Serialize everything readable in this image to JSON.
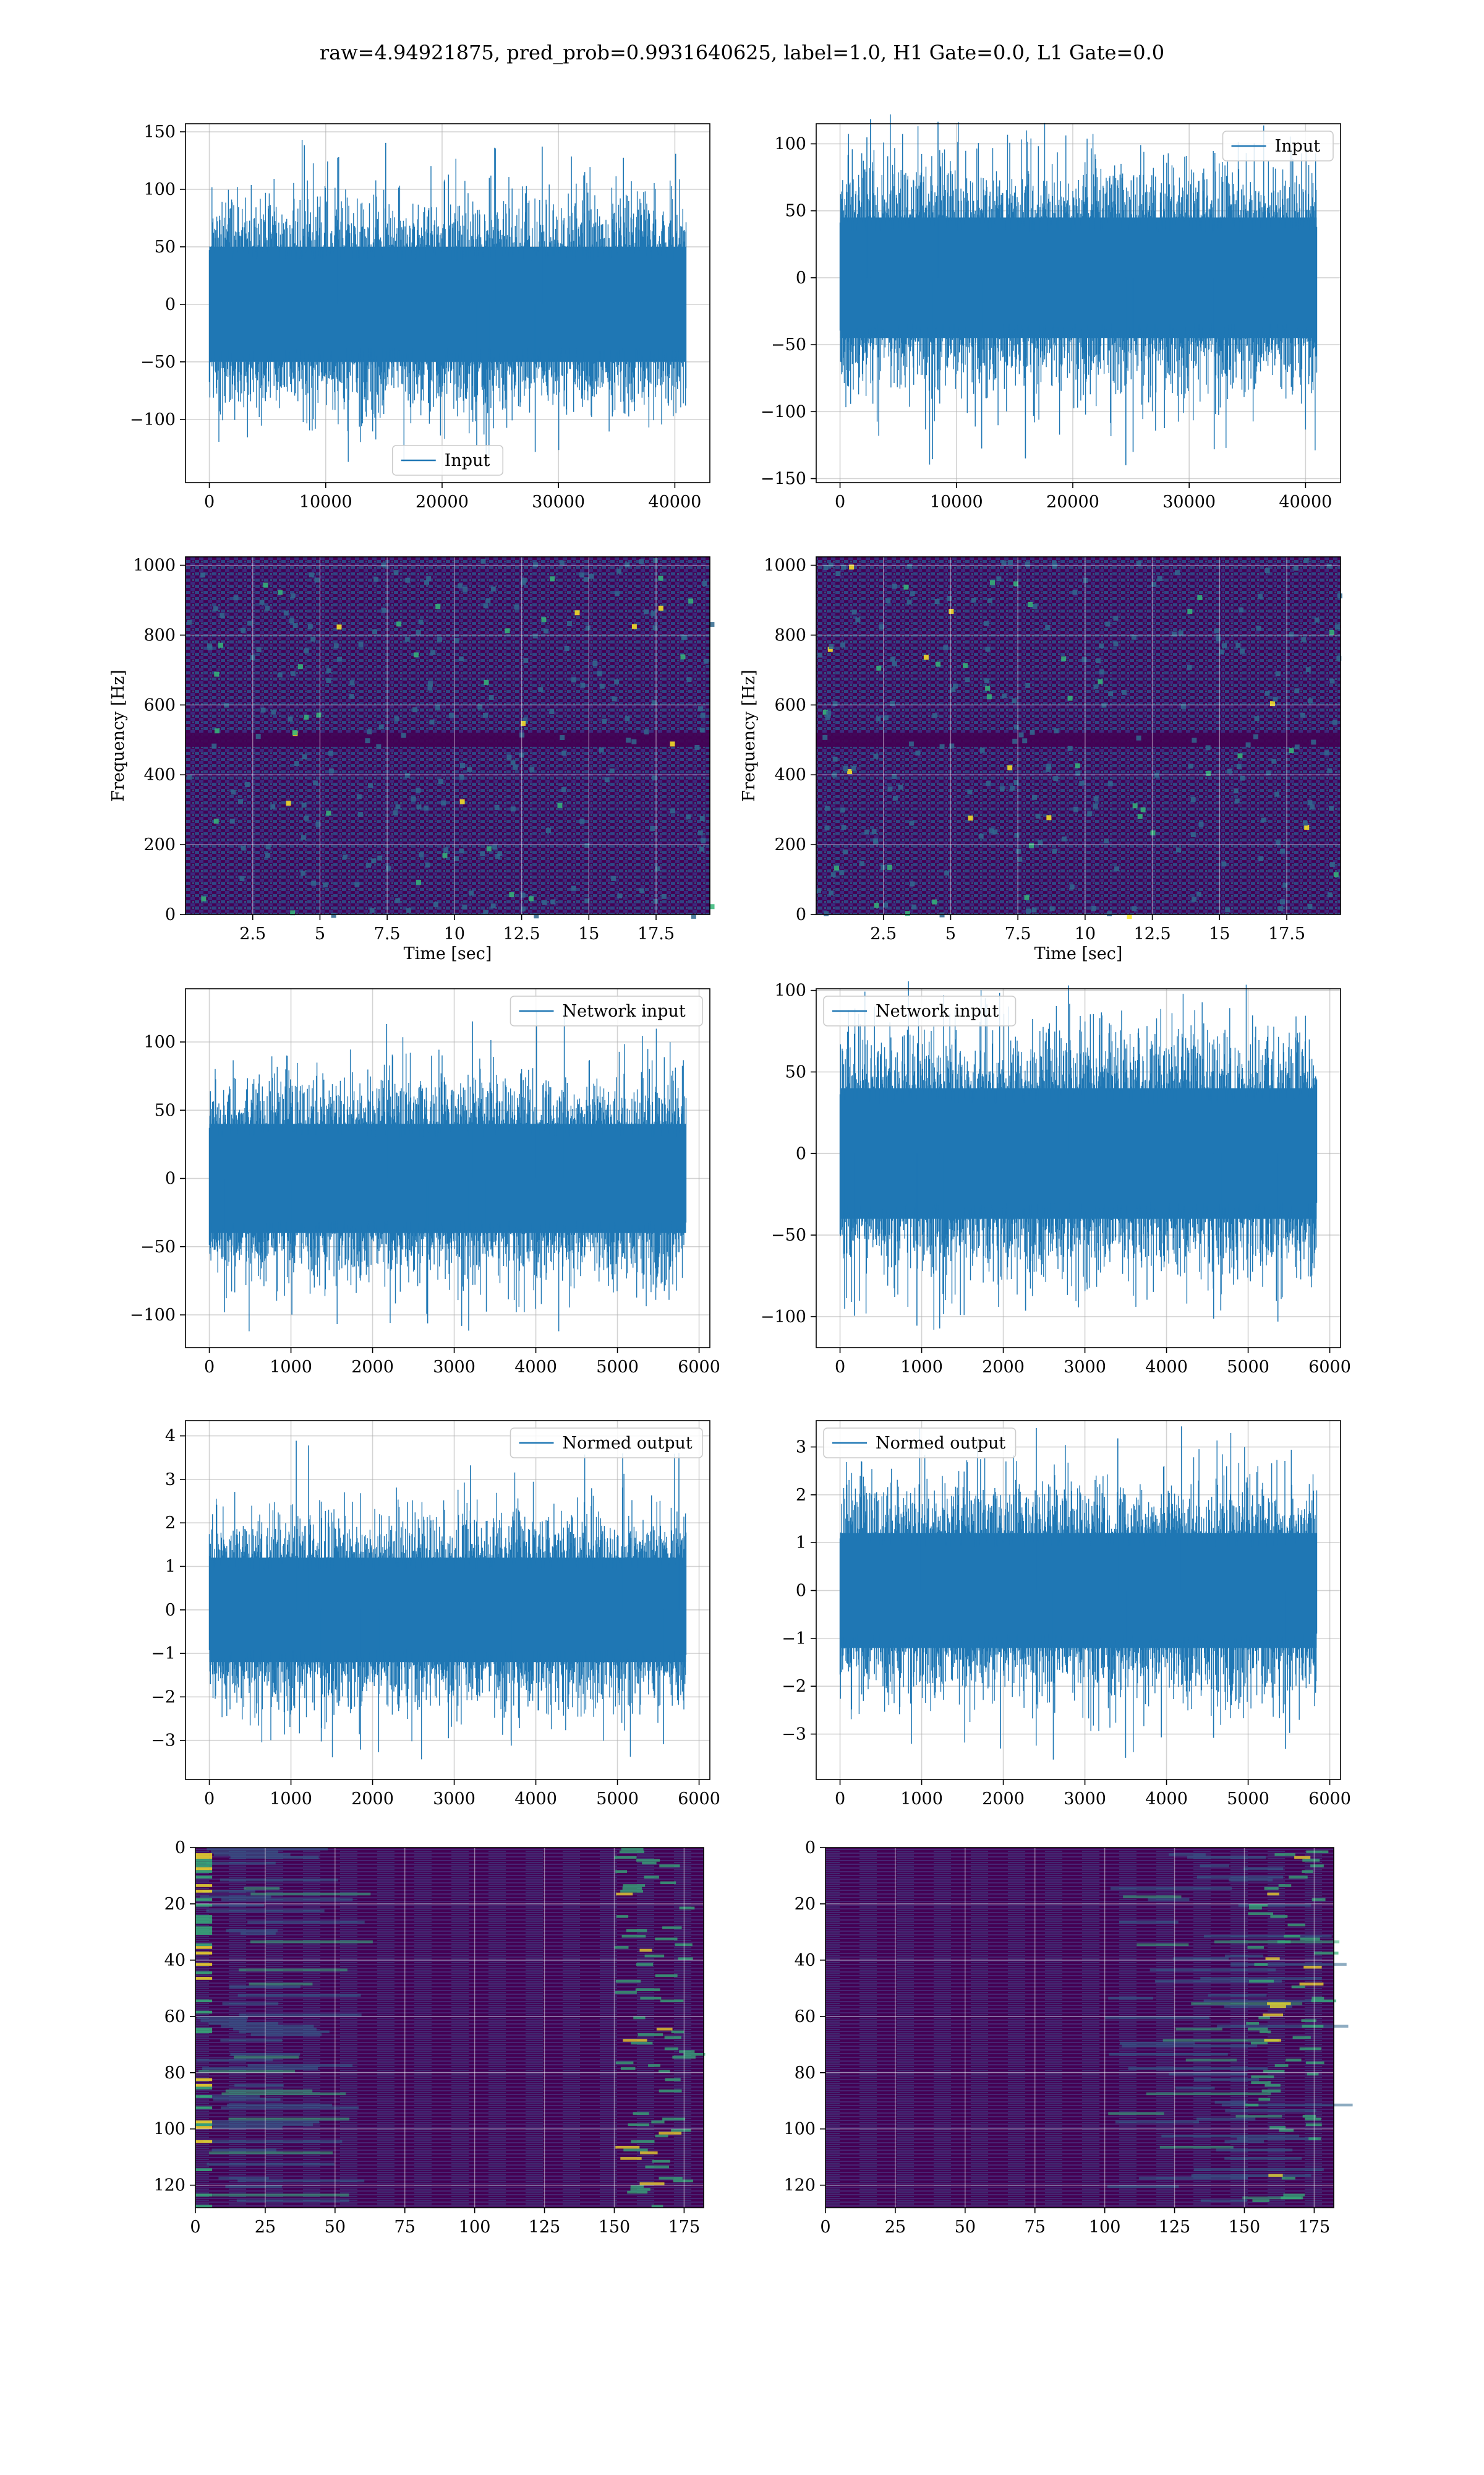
{
  "figure": {
    "suptitle": "raw=4.94921875, pred_prob=0.9931640625, label=1.0, H1 Gate=0.0, L1 Gate=0.0"
  },
  "colors": {
    "line": "#1f77b4",
    "grid": "#b0b0b0",
    "viridis_dark": "#440154",
    "viridis_mid": "#31688e",
    "viridis_teal": "#35b779",
    "viridis_yellow": "#fde725"
  },
  "chart_data": [
    {
      "id": "input-h1",
      "type": "line",
      "series": [
        {
          "name": "Input",
          "x_range": [
            0,
            40960
          ],
          "y_envelope": [
            -137,
            143
          ],
          "y_body": [
            -50,
            50
          ]
        }
      ],
      "xticks": [
        0,
        10000,
        20000,
        30000,
        40000
      ],
      "yticks": [
        -100,
        -50,
        0,
        50,
        100,
        150
      ],
      "xlim": [
        -2048,
        43008
      ],
      "ylim": [
        -155,
        157
      ],
      "legend": "lower center",
      "grid": true
    },
    {
      "id": "input-l1",
      "type": "line",
      "series": [
        {
          "name": "Input",
          "x_range": [
            0,
            40960
          ],
          "y_envelope": [
            -140,
            122
          ],
          "y_body": [
            -45,
            45
          ]
        }
      ],
      "xticks": [
        0,
        10000,
        20000,
        30000,
        40000
      ],
      "yticks": [
        -150,
        -100,
        -50,
        0,
        50,
        100
      ],
      "xlim": [
        -2048,
        43008
      ],
      "ylim": [
        -153,
        115
      ],
      "legend": "upper right",
      "grid": true
    },
    {
      "id": "spectrogram-h1",
      "type": "heatmap",
      "xlabel": "Time [sec]",
      "ylabel": "Frequency [Hz]",
      "xticks": [
        2.5,
        5.0,
        7.5,
        10.0,
        12.5,
        15.0,
        17.5
      ],
      "yticks": [
        0,
        200,
        400,
        600,
        800,
        1000
      ],
      "xlim": [
        0.0,
        19.5
      ],
      "ylim": [
        0,
        1024
      ],
      "colormap": "viridis",
      "grid": true
    },
    {
      "id": "spectrogram-l1",
      "type": "heatmap",
      "xlabel": "Time [sec]",
      "ylabel": "Frequency [Hz]",
      "xticks": [
        2.5,
        5.0,
        7.5,
        10.0,
        12.5,
        15.0,
        17.5
      ],
      "yticks": [
        0,
        200,
        400,
        600,
        800,
        1000
      ],
      "xlim": [
        0.0,
        19.5
      ],
      "ylim": [
        0,
        1024
      ],
      "colormap": "viridis",
      "grid": true
    },
    {
      "id": "network-input-h1",
      "type": "line",
      "series": [
        {
          "name": "Network input",
          "x_range": [
            0,
            5840
          ],
          "y_envelope": [
            -112,
            128
          ],
          "y_body": [
            -40,
            40
          ]
        }
      ],
      "xticks": [
        0,
        1000,
        2000,
        3000,
        4000,
        5000,
        6000
      ],
      "yticks": [
        -100,
        -50,
        0,
        50,
        100
      ],
      "xlim": [
        -292,
        6132
      ],
      "ylim": [
        -124,
        139
      ],
      "legend": "upper right",
      "grid": true
    },
    {
      "id": "network-input-l1",
      "type": "line",
      "series": [
        {
          "name": "Network input",
          "x_range": [
            0,
            5840
          ],
          "y_envelope": [
            -108,
            112
          ],
          "y_body": [
            -40,
            40
          ]
        }
      ],
      "xticks": [
        0,
        1000,
        2000,
        3000,
        4000,
        5000,
        6000
      ],
      "yticks": [
        -100,
        -50,
        0,
        50,
        100
      ],
      "xlim": [
        -292,
        6132
      ],
      "ylim": [
        -119,
        101
      ],
      "legend": "upper left",
      "grid": true
    },
    {
      "id": "normed-output-h1",
      "type": "line",
      "series": [
        {
          "name": "Normed output",
          "x_range": [
            0,
            5840
          ],
          "y_envelope": [
            -3.5,
            3.9
          ],
          "y_body": [
            -1.2,
            1.2
          ]
        }
      ],
      "xticks": [
        0,
        1000,
        2000,
        3000,
        4000,
        5000,
        6000
      ],
      "yticks": [
        -3,
        -2,
        -1,
        0,
        1,
        2,
        3,
        4
      ],
      "xlim": [
        -292,
        6132
      ],
      "ylim": [
        -3.9,
        4.35
      ],
      "legend": "upper right",
      "grid": true
    },
    {
      "id": "normed-output-l1",
      "type": "line",
      "series": [
        {
          "name": "Normed output",
          "x_range": [
            0,
            5840
          ],
          "y_envelope": [
            -3.6,
            3.5
          ],
          "y_body": [
            -1.2,
            1.2
          ]
        }
      ],
      "xticks": [
        0,
        1000,
        2000,
        3000,
        4000,
        5000,
        6000
      ],
      "yticks": [
        -3,
        -2,
        -1,
        0,
        1,
        2,
        3
      ],
      "xlim": [
        -292,
        6132
      ],
      "ylim": [
        -3.95,
        3.55
      ],
      "legend": "upper left",
      "grid": true
    },
    {
      "id": "feature-map-h1",
      "type": "heatmap",
      "xticks": [
        0,
        25,
        50,
        75,
        100,
        125,
        150,
        175
      ],
      "yticks": [
        0,
        20,
        40,
        60,
        80,
        100,
        120
      ],
      "xlim": [
        0,
        182
      ],
      "ylim": [
        128,
        0
      ],
      "colormap": "viridis",
      "grid": true
    },
    {
      "id": "feature-map-l1",
      "type": "heatmap",
      "xticks": [
        0,
        25,
        50,
        75,
        100,
        125,
        150,
        175
      ],
      "yticks": [
        0,
        20,
        40,
        60,
        80,
        100,
        120
      ],
      "xlim": [
        0,
        182
      ],
      "ylim": [
        128,
        0
      ],
      "colormap": "viridis",
      "grid": true
    }
  ]
}
